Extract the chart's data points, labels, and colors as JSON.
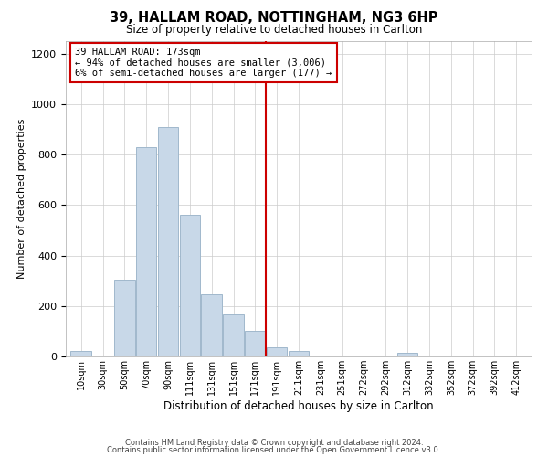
{
  "title": "39, HALLAM ROAD, NOTTINGHAM, NG3 6HP",
  "subtitle": "Size of property relative to detached houses in Carlton",
  "xlabel": "Distribution of detached houses by size in Carlton",
  "ylabel": "Number of detached properties",
  "bar_labels": [
    "10sqm",
    "30sqm",
    "50sqm",
    "70sqm",
    "90sqm",
    "111sqm",
    "131sqm",
    "151sqm",
    "171sqm",
    "191sqm",
    "211sqm",
    "231sqm",
    "251sqm",
    "272sqm",
    "292sqm",
    "312sqm",
    "332sqm",
    "352sqm",
    "372sqm",
    "392sqm",
    "412sqm"
  ],
  "bar_heights": [
    20,
    0,
    305,
    830,
    910,
    560,
    245,
    165,
    100,
    38,
    20,
    0,
    0,
    0,
    0,
    15,
    0,
    0,
    0,
    0,
    0
  ],
  "bar_color": "#c8d8e8",
  "bar_edge_color": "#a0b8cc",
  "vline_color": "#cc0000",
  "annotation_title": "39 HALLAM ROAD: 173sqm",
  "annotation_line1": "← 94% of detached houses are smaller (3,006)",
  "annotation_line2": "6% of semi-detached houses are larger (177) →",
  "annotation_box_color": "#ffffff",
  "annotation_box_edge": "#cc0000",
  "ylim": [
    0,
    1250
  ],
  "yticks": [
    0,
    200,
    400,
    600,
    800,
    1000,
    1200
  ],
  "footer1": "Contains HM Land Registry data © Crown copyright and database right 2024.",
  "footer2": "Contains public sector information licensed under the Open Government Licence v3.0."
}
